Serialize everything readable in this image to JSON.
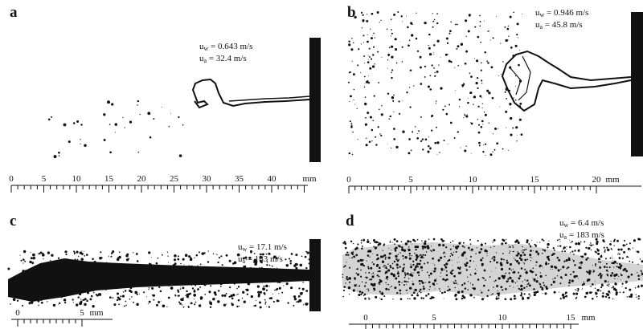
{
  "panels": [
    {
      "label": "a",
      "uw_value": "0.643 m/s",
      "ua_value": "32.4    m/s",
      "scale": {
        "labels": [
          "0",
          "5",
          "10",
          "15",
          "20",
          "25",
          "30",
          "35",
          "40",
          "mm"
        ]
      }
    },
    {
      "label": "b",
      "uw_value": "0.946 m/s",
      "ua_value": "45.8    m/s",
      "scale": {
        "labels": [
          "0",
          "5",
          "10",
          "15",
          "20",
          "mm"
        ]
      }
    },
    {
      "label": "c",
      "uw_value": "17.1 m/s",
      "ua_value": "183    m/s",
      "scale": {
        "labels": [
          "0",
          "5",
          "mm"
        ]
      }
    },
    {
      "label": "d",
      "uw_value": "6.4 m/s",
      "ua_value": "183    m/s",
      "scale": {
        "labels": [
          "0",
          "5",
          "10",
          "15",
          "mm"
        ]
      }
    }
  ],
  "symbols": {
    "uw": "u",
    "uw_sub": "w",
    "ua": "u",
    "ua_sub": "a",
    "eq": "="
  },
  "colors": {
    "ink": "#111111",
    "background": "#ffffff"
  }
}
